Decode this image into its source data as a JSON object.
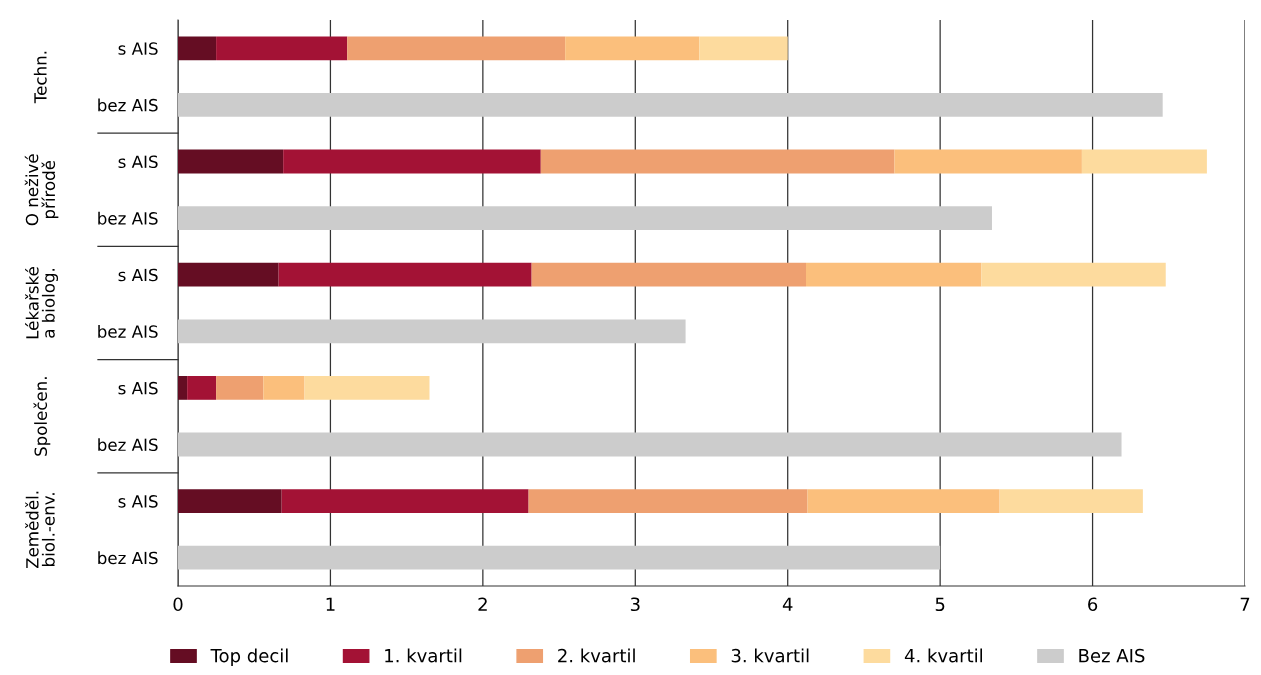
{
  "chart_data": {
    "type": "bar",
    "orientation": "horizontal",
    "stacked": true,
    "categories": [
      "s AIS",
      "bez AIS",
      "s AIS",
      "bez AIS",
      "s AIS",
      "bez AIS",
      "s AIS",
      "bez AIS",
      "s AIS",
      "bez AIS"
    ],
    "annotations": [
      "Techn.",
      "O neživé\npřírodě",
      "Lékařské\na biolog.",
      "Společen.",
      "Zeměděl.\nbiol.-env."
    ],
    "series": [
      {
        "name": "Top decil",
        "color": "#650d23",
        "values": [
          0.25,
          null,
          0.69,
          null,
          0.66,
          null,
          0.06,
          null,
          0.68,
          null
        ]
      },
      {
        "name": "1. kvartil",
        "color": "#a31235",
        "values": [
          0.86,
          null,
          1.69,
          null,
          1.66,
          null,
          0.19,
          null,
          1.62,
          null
        ]
      },
      {
        "name": "2. kvartil",
        "color": "#eea070",
        "values": [
          1.43,
          null,
          2.32,
          null,
          1.8,
          null,
          0.31,
          null,
          1.83,
          null
        ]
      },
      {
        "name": "3. kvartil",
        "color": "#fbbf7c",
        "values": [
          0.88,
          null,
          1.23,
          null,
          1.15,
          null,
          0.27,
          null,
          1.26,
          null
        ]
      },
      {
        "name": "4. kvartil",
        "color": "#fddb9e",
        "values": [
          0.58,
          null,
          0.82,
          null,
          1.21,
          null,
          0.82,
          null,
          0.94,
          null
        ]
      },
      {
        "name": "Bez AIS",
        "color": "#cccccc",
        "values": [
          null,
          6.46,
          null,
          5.34,
          null,
          3.33,
          null,
          6.19,
          null,
          5.0
        ]
      }
    ],
    "xlim": [
      0,
      7
    ],
    "xticks": [
      0,
      1,
      2,
      3,
      4,
      5,
      6,
      7
    ],
    "grid": "x",
    "legend": "bottom"
  }
}
